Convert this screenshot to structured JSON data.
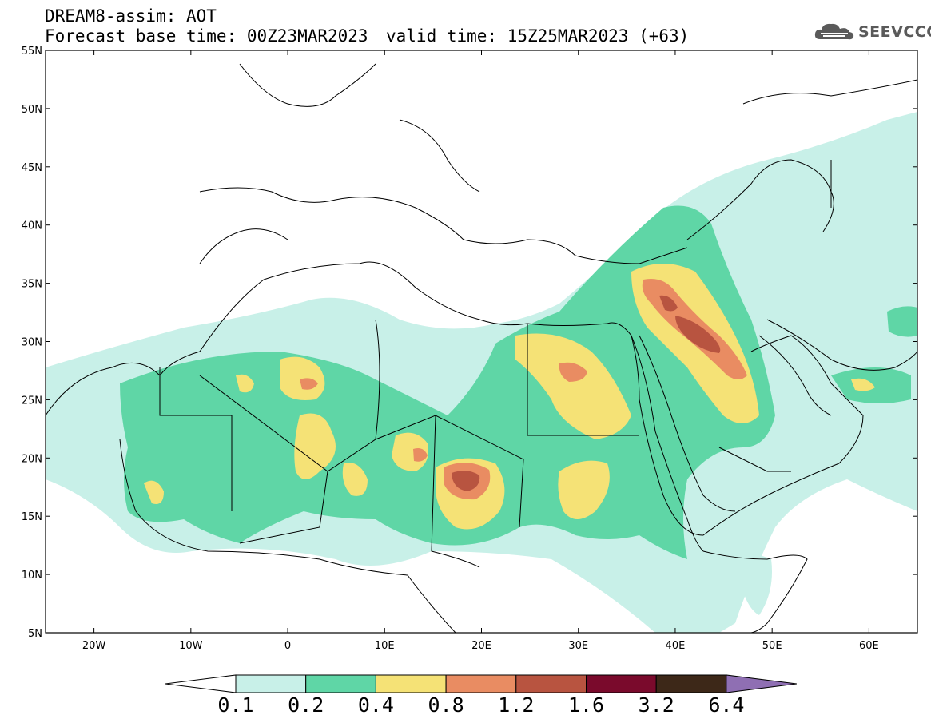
{
  "title": {
    "line1": "DREAM8-assim: AOT",
    "base_time": "Forecast base time: 00Z23MAR2023",
    "valid_time": "valid time: 15Z25MAR2023 (+63)"
  },
  "logo": {
    "text": "SEEVCCC",
    "icon": "cloud-icon"
  },
  "map": {
    "region": "North Africa, Middle East, Europe",
    "lat_range": [
      5,
      55
    ],
    "lon_range": [
      -25,
      65
    ],
    "lat_ticks": [
      "5N",
      "10N",
      "15N",
      "20N",
      "25N",
      "30N",
      "35N",
      "40N",
      "45N",
      "50N",
      "55N"
    ],
    "lon_ticks": [
      "20W",
      "10W",
      "0",
      "10E",
      "20E",
      "30E",
      "40E",
      "50E",
      "60E"
    ],
    "background_color": "#ffffff",
    "border_color": "#000000"
  },
  "colorbar": {
    "labels": [
      "0.1",
      "0.2",
      "0.4",
      "0.8",
      "1.2",
      "1.6",
      "3.2",
      "6.4"
    ],
    "colors": [
      "#c8f0e8",
      "#5fd6a6",
      "#f5e276",
      "#e98c62",
      "#b85440",
      "#7a0a2c",
      "#3d2818",
      "#8f6fb3"
    ],
    "below_color": "#ffffff"
  }
}
